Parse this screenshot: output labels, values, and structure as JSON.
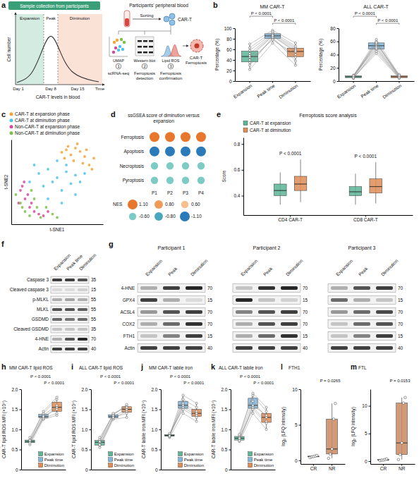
{
  "schematic": {
    "letter": "a",
    "banner": "Sample collection from participants",
    "y_label": "Cell number",
    "x_label": "Time",
    "phases": [
      "Expansion",
      "Peak",
      "Diminution"
    ],
    "days": [
      "Day 1",
      "Day 8",
      "Day 15"
    ],
    "curve_label": "CAR-T levels in blood",
    "source": "Participants' peripheral blood",
    "sorting": "Sorting",
    "cell_label": "CAR-T",
    "steps": [
      {
        "number": "1",
        "label": "scRNA-seq",
        "figure": "UMAP"
      },
      {
        "number": "2",
        "label": "Ferroptosis detection",
        "figure": "Western blot"
      },
      {
        "number": "3",
        "label": "Ferroptosis confirmation",
        "figure": "Lipid ROS"
      }
    ],
    "result": "CAR-T Ferroptosis"
  },
  "chart_data": [
    {
      "letter": "b",
      "type": "paired_box",
      "title": "MM CAR-T",
      "y_label": "Percentage (%)",
      "categories": [
        "Expansion",
        "Peak time",
        "Diminution"
      ],
      "colors": [
        "#5bb596",
        "#82b6dc",
        "#de8c55"
      ],
      "values": [
        [
          45,
          22,
          58,
          35,
          70,
          40,
          52,
          30,
          63,
          48
        ],
        [
          85,
          72,
          90,
          80,
          96,
          78,
          88,
          83,
          93,
          86
        ],
        [
          55,
          30,
          63,
          45,
          72,
          50,
          60,
          38,
          66,
          57
        ]
      ],
      "ylim": [
        0,
        100
      ],
      "yticks": [
        0,
        20,
        40,
        60,
        80,
        100
      ],
      "comparisons": [
        {
          "between": [
            0,
            1
          ],
          "label": "P < 0.0001"
        },
        {
          "between": [
            1,
            2
          ],
          "label": "P < 0.0001"
        }
      ]
    },
    {
      "type": "paired_box",
      "title": "ALL CAR-T",
      "y_label": "Percentage (%)",
      "categories": [
        "Expansion",
        "Peak time",
        "Diminution"
      ],
      "colors": [
        "#5bb596",
        "#82b6dc",
        "#de8c55"
      ],
      "values": [
        [
          4,
          6,
          7,
          5,
          8,
          9,
          6,
          7,
          5,
          8
        ],
        [
          48,
          55,
          60,
          42,
          63,
          52,
          57,
          50,
          45,
          58
        ],
        [
          5,
          8,
          6,
          4,
          9,
          7,
          10,
          6,
          5,
          8
        ]
      ],
      "ylim": [
        0,
        80
      ],
      "yticks": [
        0,
        20,
        40,
        60,
        80
      ],
      "comparisons": [
        {
          "between": [
            0,
            1
          ],
          "label": "P < 0.0001"
        },
        {
          "between": [
            1,
            2
          ],
          "label": "P < 0.0001"
        }
      ]
    },
    {
      "letter": "c",
      "type": "scatter",
      "x_label": "t-SNE1",
      "y_label": "t-SNE2",
      "tick_labels": false,
      "legend": "top",
      "xlim": [
        -50,
        50
      ],
      "ylim": [
        -50,
        50
      ],
      "series": [
        {
          "name": "CAR-T at expansion phase",
          "color": "#f2a33a",
          "marker": "circle",
          "x": [
            5,
            10,
            15,
            20,
            25,
            30,
            8,
            18,
            28,
            35,
            12,
            22,
            32,
            38,
            40
          ],
          "y": [
            35,
            38,
            32,
            40,
            36,
            30,
            28,
            25,
            22,
            20,
            42,
            45,
            38,
            15,
            28
          ]
        },
        {
          "name": "CAR-T at diminution phase",
          "color": "#52c3e8",
          "marker": "circle",
          "x": [
            -20,
            -10,
            0,
            10,
            20,
            -15,
            -5,
            5,
            15,
            25,
            -25,
            0,
            10,
            -10,
            20,
            30,
            -30,
            5
          ],
          "y": [
            10,
            15,
            5,
            12,
            8,
            -5,
            0,
            -10,
            -2,
            0,
            20,
            25,
            20,
            -20,
            -15,
            10,
            0,
            -25
          ]
        },
        {
          "name": "Non-CAR-T at expansion phase",
          "color": "#d44a9b",
          "marker": "circle",
          "x": [
            -40,
            -35,
            -30,
            -25,
            -38,
            -32,
            -28,
            -20,
            -15,
            -42,
            -36,
            -10
          ],
          "y": [
            -10,
            -20,
            -30,
            -35,
            -5,
            -15,
            -25,
            -38,
            -40,
            -25,
            0,
            -35
          ]
        },
        {
          "name": "Non-CAR-T at diminution phase",
          "color": "#7cbf4a",
          "marker": "circle",
          "x": [
            -45,
            -40,
            -35,
            -30,
            -28,
            -22,
            -18,
            -12,
            -5,
            -38,
            -25,
            0
          ],
          "y": [
            -15,
            -25,
            -35,
            -40,
            -10,
            -30,
            -42,
            -30,
            -38,
            -30,
            -20,
            -42
          ]
        }
      ]
    },
    {
      "letter": "d",
      "type": "dot",
      "title": "ssGSEA score of diminution versus expansion",
      "categories": [
        "P1",
        "P2",
        "P3",
        "P4"
      ],
      "rows": [
        "Ferroptosis",
        "Apoptosis",
        "Necroptosis",
        "Pyroptosis"
      ],
      "values": [
        [
          1.1,
          1.1,
          1.1,
          1.1
        ],
        [
          -1.1,
          -1.1,
          -1.1,
          -1.1
        ],
        [
          -0.6,
          -0.6,
          -0.6,
          -0.6
        ],
        [
          -0.6,
          -0.6,
          -0.6,
          -0.6
        ]
      ],
      "color_scale": {
        "title": "NES",
        "ticks": [
          {
            "value": 1.1,
            "label": "1.10"
          },
          {
            "value": 0.8,
            "label": "0.80"
          },
          {
            "value": 0.6,
            "label": "0.60"
          },
          {
            "value": -0.6,
            "label": "-0.60"
          },
          {
            "value": -0.8,
            "label": "-0.80"
          },
          {
            "value": -1.1,
            "label": "-1.10"
          }
        ],
        "colors": [
          "#e8772e",
          "#f09a58",
          "#f5bf8e",
          "#7ccbc4",
          "#4aa6bf",
          "#2b7bba"
        ]
      }
    },
    {
      "letter": "e",
      "type": "box",
      "title": "Ferroptosis score analysis",
      "y_label": "Score",
      "legend": "top-left",
      "categories": [
        "CD4 CAR-T",
        "CD8 CAR-T"
      ],
      "series": [
        {
          "name": "CAR-T at expansion",
          "color": "#5bb596",
          "whisker_low": [
            0.33,
            0.33
          ],
          "q1": [
            0.4,
            0.4
          ],
          "median": [
            0.44,
            0.43
          ],
          "q3": [
            0.49,
            0.47
          ],
          "whisker_high": [
            0.58,
            0.57
          ]
        },
        {
          "name": "CAR-T at diminution",
          "color": "#de8c55",
          "whisker_low": [
            0.35,
            0.34
          ],
          "q1": [
            0.44,
            0.42
          ],
          "median": [
            0.49,
            0.47
          ],
          "q3": [
            0.55,
            0.53
          ],
          "whisker_high": [
            0.68,
            0.66
          ]
        }
      ],
      "ylim": [
        0.25,
        0.85
      ],
      "yticks": [
        0.4,
        0.6,
        0.8
      ],
      "annotations": [
        {
          "category": 0,
          "label": "P < 0.0001"
        },
        {
          "category": 1,
          "label": "P < 0.0001"
        }
      ]
    },
    {
      "letter": "h",
      "type": "paired_box",
      "title": "MM CAR-T lipid ROS",
      "y_label": "CAR-T lipid ROS MFI (×10⁴)",
      "tick_labels": "y",
      "legend": "lower right",
      "categories": [
        "Expansion",
        "Peak time",
        "Diminution"
      ],
      "colors": [
        "#5bb596",
        "#82b6dc",
        "#de8c55"
      ],
      "values": [
        [
          0.62,
          0.7,
          0.75,
          0.8,
          0.68,
          0.72,
          0.66
        ],
        [
          1.25,
          1.3,
          1.35,
          1.4,
          1.28,
          1.45,
          1.32
        ],
        [
          1.35,
          1.55,
          1.6,
          1.75,
          1.4,
          1.8,
          1.5
        ]
      ],
      "ylim": [
        0,
        2
      ],
      "yticks": [
        0,
        0.5,
        {
          "value": 1,
          "label": "1.0"
        },
        1.5,
        {
          "value": 2,
          "label": "2.0"
        }
      ],
      "annotations": [
        {
          "category": 1,
          "label": "P < 0.0001"
        },
        {
          "category": 2,
          "label": "P < 0.0001"
        }
      ]
    },
    {
      "letter": "i",
      "type": "paired_box",
      "title": "ALL CAR-T lipid ROS",
      "y_label": "CAR-T lipid ROS MFI (×10⁴)",
      "tick_labels": "y",
      "legend": "lower right",
      "categories": [
        "Expansion",
        "Peak time",
        "Diminution"
      ],
      "colors": [
        "#5bb596",
        "#82b6dc",
        "#de8c55"
      ],
      "values": [
        [
          0.55,
          0.6,
          0.68,
          0.75,
          0.62,
          0.8,
          0.7
        ],
        [
          1.25,
          1.28,
          1.32,
          1.38,
          1.3,
          1.35,
          1.4
        ],
        [
          1.3,
          1.45,
          1.5,
          1.58,
          1.4,
          1.62,
          1.55
        ]
      ],
      "ylim": [
        0,
        2
      ],
      "yticks": [
        0,
        0.5,
        {
          "value": 1,
          "label": "1.0"
        },
        1.5,
        {
          "value": 2,
          "label": "2.0"
        }
      ],
      "annotations": [
        {
          "category": 1,
          "label": "P < 0.0001"
        },
        {
          "category": 2,
          "label": "P < 0.0001"
        }
      ]
    },
    {
      "letter": "j",
      "type": "paired_box",
      "title": "MM CAR-T labile iron",
      "y_label": "CAR-T labile iron MFI (×10⁴)",
      "tick_labels": "y",
      "legend": "lower right",
      "categories": [
        "Expansion",
        "Peak time",
        "Diminution"
      ],
      "colors": [
        "#5bb596",
        "#82b6dc",
        "#de8c55"
      ],
      "values": [
        [
          0.8,
          0.85,
          0.88,
          0.82,
          0.9,
          0.86,
          0.84
        ],
        [
          1.4,
          1.55,
          1.65,
          1.75,
          1.5,
          1.85,
          1.6
        ],
        [
          1.2,
          1.35,
          1.45,
          1.55,
          1.3,
          1.65,
          1.4
        ]
      ],
      "ylim": [
        0,
        2
      ],
      "yticks": [
        0,
        0.5,
        {
          "value": 1,
          "label": "1.0"
        },
        1.5,
        {
          "value": 2,
          "label": "2.0"
        }
      ],
      "annotations": [
        {
          "category": 1,
          "label": "P < 0.0001"
        },
        {
          "category": 2,
          "label": "P < 0.0001"
        }
      ]
    },
    {
      "letter": "k",
      "type": "paired_box",
      "title": "ALL CAR-T labile iron",
      "y_label": "CAR-T labile iron MFI (×10⁴)",
      "tick_labels": "y",
      "legend": "lower right",
      "categories": [
        "Expansion",
        "Peak time",
        "Diminution"
      ],
      "colors": [
        "#5bb596",
        "#82b6dc",
        "#de8c55"
      ],
      "values": [
        [
          0.7,
          0.75,
          0.8,
          0.85,
          0.78,
          0.88,
          0.72
        ],
        [
          1.4,
          1.55,
          1.7,
          1.85,
          1.5,
          1.9,
          1.6
        ],
        [
          1,
          1.2,
          1.3,
          1.45,
          1.15,
          1.55,
          1.35
        ]
      ],
      "ylim": [
        0,
        2
      ],
      "yticks": [
        0,
        0.5,
        {
          "value": 1,
          "label": "1.0"
        },
        1.5,
        {
          "value": 2,
          "label": "2.0"
        }
      ],
      "annotations": [
        {
          "category": 1,
          "label": "P < 0.0001"
        },
        {
          "category": 2,
          "label": "P < 0.0001"
        }
      ]
    },
    {
      "letter": "l",
      "type": "box",
      "title": "FTH1",
      "y_label": "log₂ (LFQ intensity)",
      "categories": [
        "CR",
        "NR"
      ],
      "colors": [
        "#c9d7ea",
        "#c98a62"
      ],
      "values": [
        [
          0.4,
          0.5,
          0.55,
          0.6,
          0.7
        ],
        [
          0.3,
          0.9,
          1.6,
          5.8,
          8
        ]
      ],
      "ylim": [
        -0.5,
        10
      ],
      "yticks": [
        0,
        5,
        10
      ],
      "annotations": [
        {
          "category": 1,
          "label": "P = 0.0265"
        }
      ]
    },
    {
      "letter": "m",
      "type": "box",
      "title": "FTL",
      "y_label": "log₂ (LFQ intensity)",
      "categories": [
        "CR",
        "NR"
      ],
      "colors": [
        "#c9d7ea",
        "#c98a62"
      ],
      "values": [
        [
          0.1,
          0.2,
          0.2,
          0.3,
          0.4
        ],
        [
          0.3,
          1.2,
          3.3,
          10.5,
          11.5
        ]
      ],
      "ylim": [
        -0.5,
        13
      ],
      "yticks": [
        0,
        5,
        10
      ],
      "annotations": [
        {
          "category": 1,
          "label": "P = 0.0153"
        }
      ]
    }
  ],
  "blots": [
    {
      "letter": "f",
      "lanes": [
        "Expansion",
        "Peak time",
        "Diminution"
      ],
      "rows": [
        {
          "label": "Caspase 3",
          "kda": 35,
          "intensity": [
            0.8,
            0.8,
            0.7
          ]
        },
        {
          "label": "Cleaved caspase 3",
          "kda": 15,
          "intensity": [
            0.1,
            0.1,
            0.15
          ]
        },
        {
          "label": "p-MLKL",
          "kda": 55,
          "intensity": [
            0.3,
            0.35,
            0.3
          ]
        },
        {
          "label": "MLKL",
          "kda": 55,
          "intensity": [
            0.7,
            0.7,
            0.65
          ]
        },
        {
          "label": "GSDMD",
          "kda": 55,
          "intensity": [
            0.6,
            0.55,
            0.6
          ]
        },
        {
          "label": "Cleaved GSDMD",
          "kda": 35,
          "intensity": [
            0.2,
            0.2,
            0.2
          ]
        },
        {
          "label": "4-HNE",
          "kda": 70,
          "intensity": [
            0.3,
            0.7,
            0.9
          ]
        },
        {
          "label": "Actin",
          "kda": 40,
          "intensity": [
            0.8,
            0.8,
            0.8
          ]
        }
      ]
    },
    {
      "letter": "g",
      "lanes": [
        "Expansion",
        "Peak",
        "Diminution"
      ],
      "groups": [
        "Participant 1",
        "Participant 2",
        "Participant 3"
      ],
      "rows": [
        {
          "label": "4-HNE",
          "kda": 70,
          "intensity": [
            [
              0.3,
              0.8,
              0.9
            ],
            [
              0.2,
              0.85,
              0.9
            ],
            [
              0.3,
              0.7,
              0.8
            ]
          ]
        },
        {
          "label": "GPX4",
          "kda": 15,
          "intensity": [
            [
              0.8,
              0.3,
              0.1
            ],
            [
              0.9,
              0.2,
              0.15
            ],
            [
              0.6,
              0.3,
              0.2
            ]
          ]
        },
        {
          "label": "ACSL4",
          "kda": 70,
          "intensity": [
            [
              0.4,
              0.7,
              0.8
            ],
            [
              0.5,
              0.7,
              0.8
            ],
            [
              0.4,
              0.6,
              0.75
            ]
          ]
        },
        {
          "label": "COX2",
          "kda": 70,
          "intensity": [
            [
              0.3,
              0.6,
              0.85
            ],
            [
              0.3,
              0.7,
              0.8
            ],
            [
              0.2,
              0.6,
              0.7
            ]
          ]
        },
        {
          "label": "FTH1",
          "kda": 15,
          "intensity": [
            [
              0.2,
              0.5,
              0.8
            ],
            [
              0.3,
              0.6,
              0.85
            ],
            [
              0.2,
              0.5,
              0.8
            ]
          ]
        },
        {
          "label": "Actin",
          "kda": 40,
          "intensity": [
            [
              0.8,
              0.8,
              0.8
            ],
            [
              0.8,
              0.8,
              0.8
            ],
            [
              0.8,
              0.8,
              0.8
            ]
          ]
        }
      ]
    }
  ]
}
